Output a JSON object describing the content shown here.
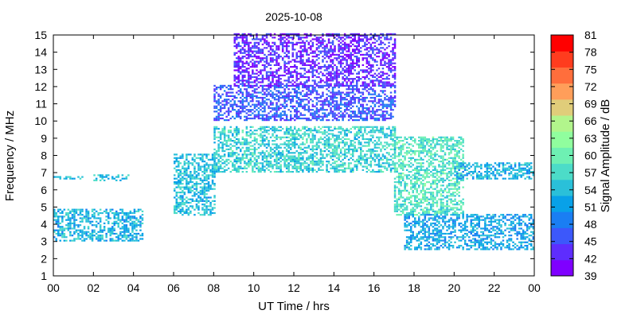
{
  "chart_data": {
    "type": "heatmap",
    "title": "2025-10-08",
    "xlabel": "UT Time / hrs",
    "ylabel": "Frequency / MHz",
    "xlim": [
      0,
      24
    ],
    "ylim": [
      1,
      15
    ],
    "x_ticks": [
      "00",
      "02",
      "04",
      "06",
      "08",
      "10",
      "12",
      "14",
      "16",
      "18",
      "20",
      "22",
      "00"
    ],
    "y_ticks": [
      "1",
      "2",
      "3",
      "4",
      "5",
      "6",
      "7",
      "8",
      "9",
      "10",
      "11",
      "12",
      "13",
      "14",
      "15"
    ],
    "grid": false,
    "colorbar": {
      "label": "Signal Amplitude / dB",
      "range": [
        39,
        81
      ],
      "ticks": [
        "39",
        "42",
        "45",
        "48",
        "51",
        "54",
        "57",
        "60",
        "63",
        "66",
        "69",
        "72",
        "75",
        "78",
        "81"
      ],
      "colors": [
        "#7f00ff",
        "#5e2dfe",
        "#3c58fb",
        "#1a7ef3",
        "#08a1e8",
        "#2ac0d9",
        "#4cdcc8",
        "#6ef0b3",
        "#90fe9e",
        "#b2f58c",
        "#e0cd7a",
        "#ff9e5a",
        "#ff6e3c",
        "#ff3c1e",
        "#ff0000"
      ]
    },
    "series": [
      {
        "x": [
          0,
          1.5
        ],
        "y": [
          6.6,
          6.7
        ],
        "amplitude": 53
      },
      {
        "x": [
          0,
          4.5
        ],
        "y": [
          3.0,
          4.8
        ],
        "amplitude": 53
      },
      {
        "x": [
          2.0,
          3.8
        ],
        "y": [
          6.5,
          6.8
        ],
        "amplitude": 54
      },
      {
        "x": [
          6.0,
          8.0
        ],
        "y": [
          4.5,
          8.0
        ],
        "amplitude": 54
      },
      {
        "x": [
          8.0,
          17.0
        ],
        "y": [
          7.0,
          9.6
        ],
        "amplitude": 56
      },
      {
        "x": [
          8.0,
          17.0
        ],
        "y": [
          10.0,
          12.0
        ],
        "amplitude": 46
      },
      {
        "x": [
          9.0,
          17.0
        ],
        "y": [
          12.0,
          15.0
        ],
        "amplitude": 43
      },
      {
        "x": [
          17.0,
          20.5
        ],
        "y": [
          4.5,
          9.0
        ],
        "amplitude": 58
      },
      {
        "x": [
          17.5,
          24.0
        ],
        "y": [
          2.5,
          4.5
        ],
        "amplitude": 52
      },
      {
        "x": [
          20.0,
          24.0
        ],
        "y": [
          6.6,
          7.5
        ],
        "amplitude": 53
      }
    ]
  }
}
